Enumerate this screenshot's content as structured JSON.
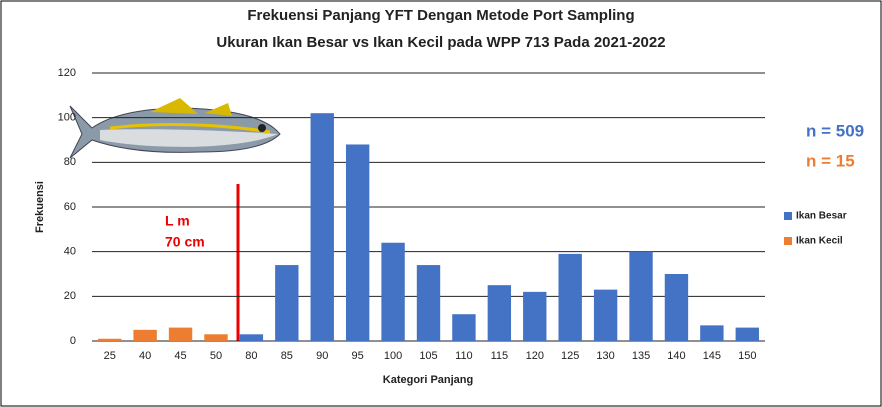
{
  "chart_data": {
    "type": "bar",
    "title": "Frekuensi Panjang YFT Dengan Metode Port Sampling",
    "subtitle": "Ukuran Ikan Besar vs Ikan Kecil pada WPP 713 Pada 2021-2022",
    "x_label": "Kategori Panjang",
    "y_label": "Frekuensi",
    "categories": [
      "25",
      "40",
      "45",
      "50",
      "80",
      "85",
      "90",
      "95",
      "100",
      "105",
      "110",
      "115",
      "120",
      "125",
      "130",
      "135",
      "140",
      "145",
      "150"
    ],
    "series": [
      {
        "name": "Ikan Besar",
        "color": "#4472c4",
        "values": [
          null,
          null,
          null,
          null,
          3,
          34,
          102,
          88,
          44,
          34,
          12,
          25,
          22,
          39,
          23,
          40,
          30,
          7,
          6
        ]
      },
      {
        "name": "Ikan Kecil",
        "color": "#ed7d31",
        "values": [
          1,
          5,
          6,
          3,
          null,
          null,
          null,
          null,
          null,
          null,
          null,
          null,
          null,
          null,
          null,
          null,
          null,
          null,
          null
        ]
      }
    ],
    "ylim": [
      0,
      120
    ],
    "yticks": [
      0,
      20,
      40,
      60,
      80,
      100,
      120
    ],
    "grid": true,
    "legend": "right",
    "annotations": [
      "n = 509",
      "n = 15",
      "L m",
      "70 cm"
    ]
  }
}
